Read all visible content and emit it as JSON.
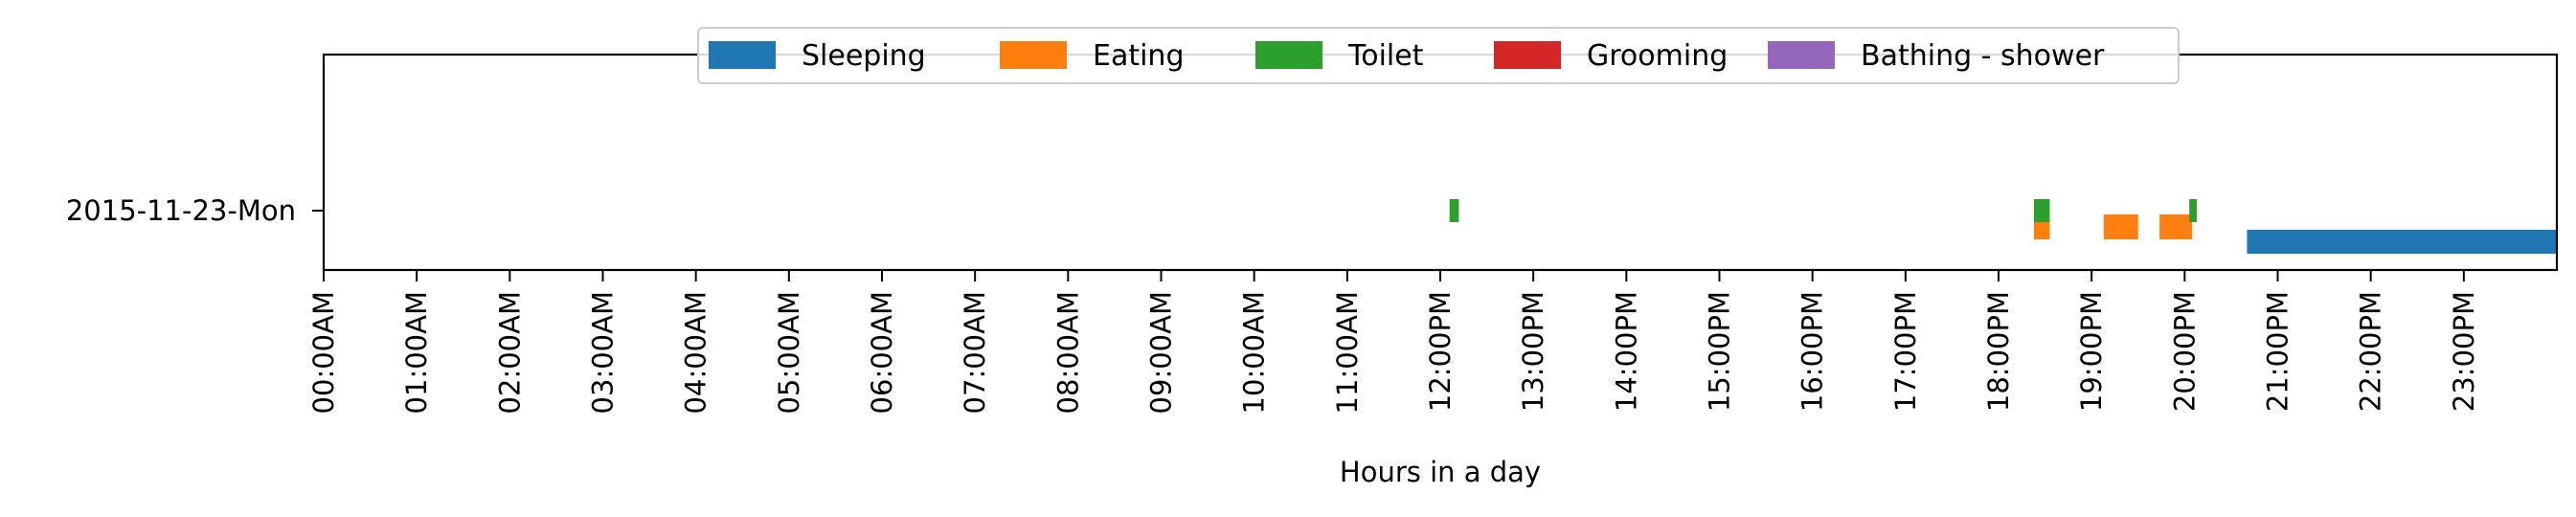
{
  "chart_data": {
    "type": "timeline",
    "xlabel": "Hours in a day",
    "xlim": [
      0,
      24
    ],
    "x_ticks": [
      "00:00AM",
      "01:00AM",
      "02:00AM",
      "03:00AM",
      "04:00AM",
      "05:00AM",
      "06:00AM",
      "07:00AM",
      "08:00AM",
      "09:00AM",
      "10:00AM",
      "11:00AM",
      "12:00PM",
      "13:00PM",
      "14:00PM",
      "15:00PM",
      "16:00PM",
      "17:00PM",
      "18:00PM",
      "19:00PM",
      "20:00PM",
      "21:00PM",
      "22:00PM",
      "23:00PM"
    ],
    "y_categories": [
      "2015-11-23-Mon"
    ],
    "legend_position": "top-center",
    "series": [
      {
        "name": "Sleeping",
        "color": "#1f77b4",
        "lane": "bottom",
        "intervals": [
          [
            20.67,
            24.0
          ]
        ]
      },
      {
        "name": "Eating",
        "color": "#ff7f0e",
        "lane": "lower-middle",
        "intervals": [
          [
            18.38,
            18.55
          ],
          [
            19.13,
            19.5
          ],
          [
            19.73,
            20.08
          ]
        ]
      },
      {
        "name": "Toilet",
        "color": "#2ca02c",
        "lane": "upper-middle",
        "intervals": [
          [
            12.1,
            12.2
          ],
          [
            18.38,
            18.55
          ],
          [
            20.05,
            20.13
          ]
        ]
      },
      {
        "name": "Grooming",
        "color": "#d62728",
        "lane": "top",
        "intervals": []
      },
      {
        "name": "Bathing - shower",
        "color": "#9467bd",
        "lane": "top",
        "intervals": []
      }
    ]
  }
}
